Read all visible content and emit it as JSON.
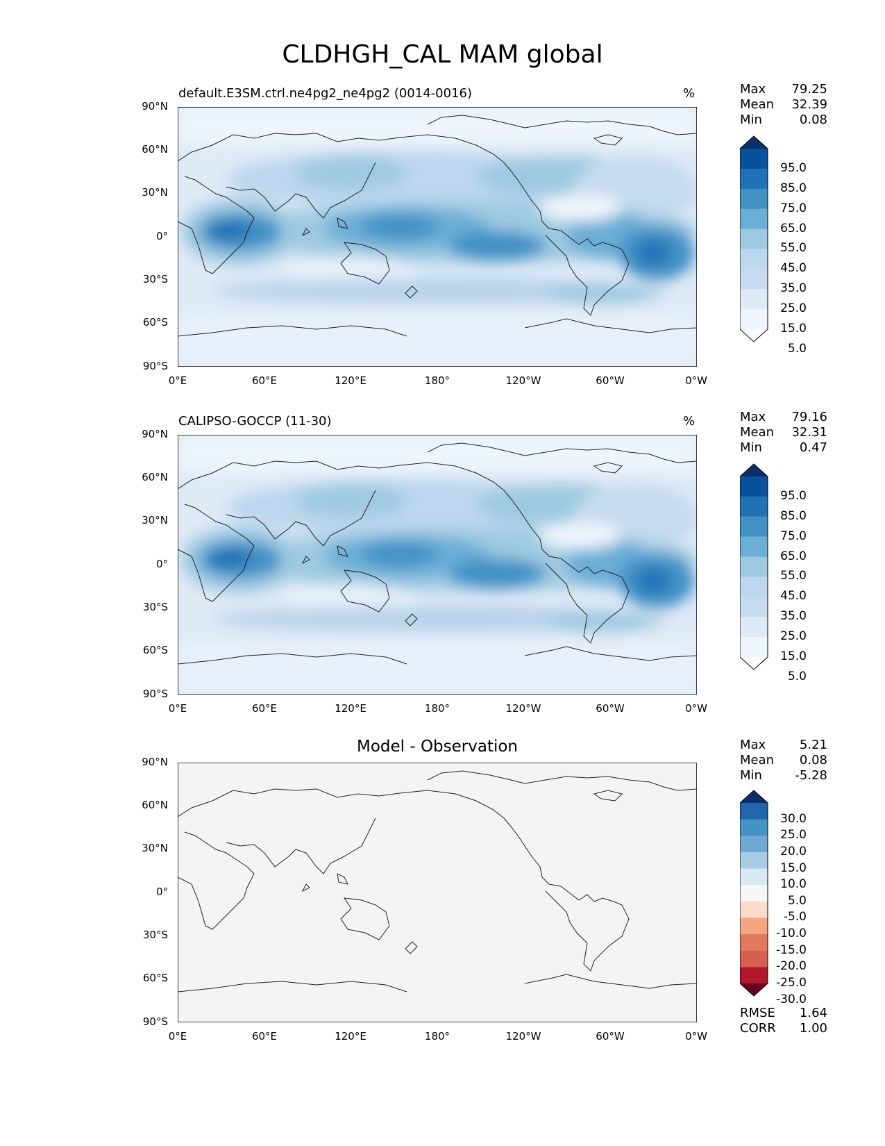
{
  "title": "CLDHGH_CAL MAM global",
  "x_ticks": [
    "0°E",
    "60°E",
    "120°E",
    "180°",
    "120°W",
    "60°W",
    "0°W"
  ],
  "y_ticks": [
    "90°N",
    "60°N",
    "30°N",
    "0°",
    "30°S",
    "60°S",
    "90°S"
  ],
  "panels": [
    {
      "label": "default.E3SM.ctrl.ne4pg2_ne4pg2 (0014-0016)",
      "units": "%",
      "stats": {
        "max_label": "Max",
        "max": "79.25",
        "mean_label": "Mean",
        "mean": "32.39",
        "min_label": "Min",
        "min": "0.08"
      },
      "colorbar": {
        "labels": [
          "95.0",
          "85.0",
          "75.0",
          "65.0",
          "55.0",
          "45.0",
          "35.0",
          "25.0",
          "15.0",
          "5.0"
        ],
        "colors": [
          "#08306b",
          "#08519c",
          "#2171b5",
          "#4292c6",
          "#6baed6",
          "#9ecae1",
          "#bdd7ee",
          "#c6dbef",
          "#deebf7",
          "#eef5fc",
          "#f7fbff"
        ]
      }
    },
    {
      "label": "CALIPSO-GOCCP (11-30)",
      "units": "%",
      "stats": {
        "max_label": "Max",
        "max": "79.16",
        "mean_label": "Mean",
        "mean": "32.31",
        "min_label": "Min",
        "min": "0.47"
      },
      "colorbar": {
        "labels": [
          "95.0",
          "85.0",
          "75.0",
          "65.0",
          "55.0",
          "45.0",
          "35.0",
          "25.0",
          "15.0",
          "5.0"
        ],
        "colors": [
          "#08306b",
          "#08519c",
          "#2171b5",
          "#4292c6",
          "#6baed6",
          "#9ecae1",
          "#bdd7ee",
          "#c6dbef",
          "#deebf7",
          "#eef5fc",
          "#f7fbff"
        ]
      }
    },
    {
      "label": "Model - Observation",
      "stats": {
        "max_label": "Max",
        "max": "5.21",
        "mean_label": "Mean",
        "mean": "0.08",
        "min_label": "Min",
        "min": "-5.28"
      },
      "colorbar": {
        "labels": [
          "30.0",
          "25.0",
          "20.0",
          "15.0",
          "10.0",
          "5.0",
          "-5.0",
          "-10.0",
          "-15.0",
          "-20.0",
          "-25.0",
          "-30.0"
        ],
        "colors": [
          "#08306b",
          "#2166ac",
          "#4393c3",
          "#6fa9d4",
          "#a6cde4",
          "#d9e9f3",
          "#f7f7f7",
          "#fbdccb",
          "#f4a582",
          "#e07a5f",
          "#d6604d",
          "#b2182b",
          "#67001f"
        ]
      },
      "metrics": {
        "rmse_label": "RMSE",
        "rmse": "1.64",
        "corr_label": "CORR",
        "corr": "1.00"
      }
    }
  ]
}
